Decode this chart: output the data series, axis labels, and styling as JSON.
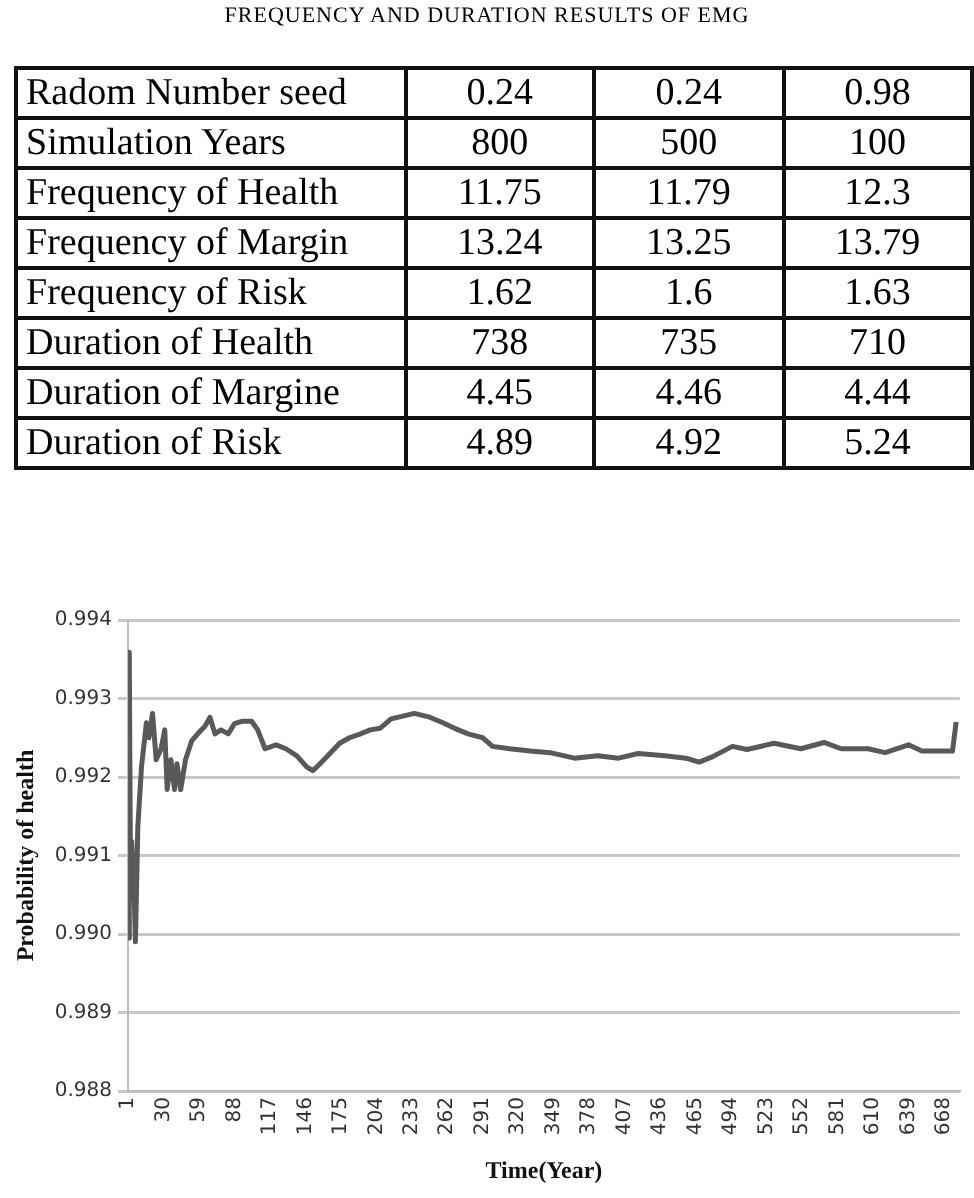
{
  "chart_data": [
    {
      "type": "other",
      "title": "FREQUENCY AND DURATION RESULTS OF EMG",
      "categories": [
        "Radom Number seed",
        "Simulation Years",
        "Frequency of Health",
        "Frequency of Margin",
        "Frequency of Risk",
        "Duration of Health",
        "Duration of Margine",
        "Duration of Risk"
      ],
      "series": [
        {
          "values": [
            0.24,
            800,
            11.75,
            13.24,
            1.62,
            738,
            4.45,
            4.89
          ]
        },
        {
          "values": [
            0.24,
            500,
            11.79,
            13.25,
            1.6,
            735,
            4.46,
            4.92
          ]
        },
        {
          "values": [
            0.98,
            100,
            12.3,
            13.79,
            1.63,
            710,
            4.44,
            5.24
          ]
        }
      ],
      "data_labels": true
    },
    {
      "type": "line",
      "xlabel": "Time(Year)",
      "ylabel": "Probability of health",
      "x": [
        1,
        2,
        3,
        4,
        6,
        7,
        9,
        12,
        16,
        18,
        21,
        24,
        28,
        31,
        33,
        36,
        39,
        41,
        44,
        48,
        53,
        58,
        64,
        68,
        72,
        77,
        83,
        88,
        94,
        102,
        107,
        113,
        122,
        130,
        139,
        147,
        152,
        158,
        166,
        174,
        182,
        191,
        199,
        207,
        216,
        224,
        235,
        246,
        257,
        268,
        279,
        291,
        299,
        313,
        330,
        346,
        366,
        385,
        402,
        418,
        440,
        457,
        468,
        479,
        495,
        507,
        529,
        551,
        570,
        584,
        606,
        620,
        639,
        650,
        675,
        678
      ],
      "series": [
        {
          "color": "#595959",
          "values": [
            0.98995,
            0.99359,
            0.99071,
            0.99118,
            0.99052,
            0.9899,
            0.99137,
            0.99213,
            0.99269,
            0.9925,
            0.99281,
            0.99222,
            0.99236,
            0.9926,
            0.99184,
            0.99222,
            0.99184,
            0.99217,
            0.99184,
            0.99222,
            0.99246,
            0.99255,
            0.99265,
            0.99276,
            0.99255,
            0.9926,
            0.99255,
            0.99268,
            0.99271,
            0.99271,
            0.9926,
            0.99236,
            0.99241,
            0.99236,
            0.99227,
            0.99213,
            0.99208,
            0.99217,
            0.9923,
            0.99243,
            0.9925,
            0.99255,
            0.9926,
            0.99262,
            0.99274,
            0.99277,
            0.99281,
            0.99277,
            0.9927,
            0.99262,
            0.99255,
            0.9925,
            0.99239,
            0.99236,
            0.99233,
            0.99231,
            0.99224,
            0.99227,
            0.99224,
            0.9923,
            0.99227,
            0.99224,
            0.99219,
            0.99226,
            0.99239,
            0.99235,
            0.99243,
            0.99236,
            0.99244,
            0.99236,
            0.99236,
            0.99231,
            0.99241,
            0.99233,
            0.99233,
            0.9927
          ]
        }
      ],
      "xlim": [
        1,
        681
      ],
      "xticks": [
        1,
        30,
        59,
        88,
        117,
        146,
        175,
        204,
        233,
        262,
        291,
        320,
        349,
        378,
        407,
        436,
        465,
        494,
        523,
        552,
        581,
        610,
        639,
        668
      ],
      "ylim": [
        0.988,
        0.994
      ],
      "yticks": [
        {
          "value": 0.988,
          "label": "0.988"
        },
        {
          "value": 0.989,
          "label": "0.989"
        },
        {
          "value": 0.99,
          "label": "0.990"
        },
        {
          "value": 0.991,
          "label": "0.991"
        },
        {
          "value": 0.992,
          "label": "0.992"
        },
        {
          "value": 0.993,
          "label": "0.993"
        },
        {
          "value": 0.994,
          "label": "0.994"
        }
      ],
      "grid": "y",
      "legend": false
    }
  ]
}
